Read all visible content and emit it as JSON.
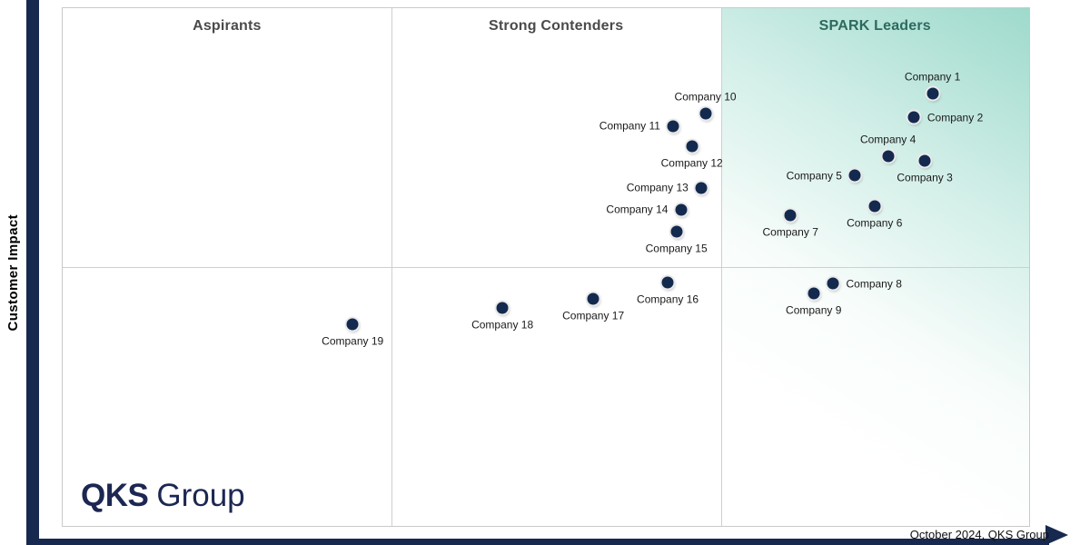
{
  "colors": {
    "axis_navy": "#17294e",
    "dot_navy": "#132a4e",
    "leaders_gradient_teal": "#9edacc",
    "leaders_title_green": "#2d6a5f",
    "zone_title_gray": "#4a4a4a",
    "grid_border_gray": "#c9c9c9"
  },
  "branding": {
    "logo_bold": "QKS",
    "logo_light": "Group"
  },
  "footer": {
    "note": "October 2024, QKS Group"
  },
  "chart_data": {
    "type": "scatter",
    "title": "",
    "xlabel": "",
    "ylabel": "Customer Impact",
    "grid": "quadrant dividers only",
    "legend_position": "none",
    "axis_ranges_note": "no numeric axes shown; point positions given as percent of plot area (x: 0=left..100=right, y: 0=top..100=bottom)",
    "zones": [
      {
        "label": "Aspirants",
        "x_start_pct": 0,
        "x_end_pct": 34
      },
      {
        "label": "Strong Contenders",
        "x_start_pct": 34,
        "x_end_pct": 68.1
      },
      {
        "label": "SPARK Leaders",
        "x_start_pct": 68.1,
        "x_end_pct": 100
      }
    ],
    "dividers": {
      "vertical_pct": [
        34,
        68.1
      ],
      "horizontal_pct": [
        50
      ]
    },
    "points": [
      {
        "label": "Company 1",
        "x": 90.0,
        "y": 16.5,
        "label_pos": "above"
      },
      {
        "label": "Company 2",
        "x": 88.1,
        "y": 21.1,
        "label_pos": "right"
      },
      {
        "label": "Company 3",
        "x": 89.2,
        "y": 29.5,
        "label_pos": "below"
      },
      {
        "label": "Company 4",
        "x": 85.4,
        "y": 28.6,
        "label_pos": "above"
      },
      {
        "label": "Company 5",
        "x": 82.0,
        "y": 32.3,
        "label_pos": "left"
      },
      {
        "label": "Company 6",
        "x": 84.0,
        "y": 38.2,
        "label_pos": "below"
      },
      {
        "label": "Company 7",
        "x": 75.3,
        "y": 40.0,
        "label_pos": "below"
      },
      {
        "label": "Company 8",
        "x": 79.7,
        "y": 53.2,
        "label_pos": "right"
      },
      {
        "label": "Company 9",
        "x": 77.7,
        "y": 55.1,
        "label_pos": "below"
      },
      {
        "label": "Company 10",
        "x": 66.5,
        "y": 20.4,
        "label_pos": "above"
      },
      {
        "label": "Company 11",
        "x": 63.2,
        "y": 22.8,
        "label_pos": "left"
      },
      {
        "label": "Company 12",
        "x": 65.1,
        "y": 26.7,
        "label_pos": "below"
      },
      {
        "label": "Company 13",
        "x": 66.1,
        "y": 34.7,
        "label_pos": "left"
      },
      {
        "label": "Company 14",
        "x": 64.0,
        "y": 38.9,
        "label_pos": "left"
      },
      {
        "label": "Company 15",
        "x": 63.5,
        "y": 43.2,
        "label_pos": "below"
      },
      {
        "label": "Company 16",
        "x": 62.6,
        "y": 53.0,
        "label_pos": "below"
      },
      {
        "label": "Company 17",
        "x": 54.9,
        "y": 56.1,
        "label_pos": "below"
      },
      {
        "label": "Company 18",
        "x": 45.5,
        "y": 57.9,
        "label_pos": "below"
      },
      {
        "label": "Company 19",
        "x": 30.0,
        "y": 61.1,
        "label_pos": "below"
      }
    ]
  }
}
